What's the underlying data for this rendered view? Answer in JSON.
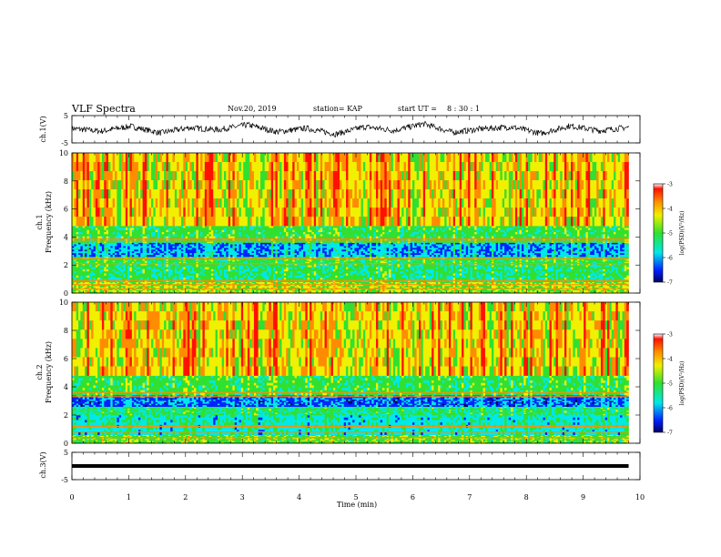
{
  "header": {
    "title": "VLF Spectra",
    "date": "Nov.20, 2019",
    "station": "station= KAP",
    "start_label": "start  UT =",
    "start_time": "8  : 30 : 1"
  },
  "chart_data": [
    {
      "type": "line",
      "panel": "ch1-waveform",
      "ylabel": "ch.1(V)",
      "ylim": [
        -5,
        5
      ],
      "yticks": [
        "5",
        "-5"
      ],
      "xlim": [
        0,
        10
      ],
      "data_end_min": 9.8,
      "series": [
        {
          "values": [
            0.3,
            -0.8,
            1.2,
            -1.5,
            0.6,
            -0.2,
            1.8,
            -1.1,
            0.4,
            -2.0,
            1.0,
            -0.5,
            2.2,
            -1.3,
            0.2,
            0.9,
            -1.7,
            1.4,
            -0.6,
            0.8
          ]
        }
      ]
    },
    {
      "type": "heatmap",
      "panel": "ch1-spectrogram",
      "ylabel": "Frequency (kHz)",
      "channel_label": "ch.1",
      "ylim": [
        0,
        10
      ],
      "yticks": [
        "0",
        "2",
        "4",
        "6",
        "8",
        "10"
      ],
      "xlim": [
        0,
        10
      ],
      "data_end_min": 9.8,
      "colorbar": {
        "label": "log(PSD)(V²/Hz)",
        "ticks": [
          "-3",
          "-4",
          "-5",
          "-6",
          "-7"
        ],
        "range": [
          -7,
          -3
        ]
      },
      "bands": [
        {
          "from_khz": 0,
          "to_khz": 0.8,
          "level": -4.6
        },
        {
          "from_khz": 0.8,
          "to_khz": 2.0,
          "level": -5.2
        },
        {
          "from_khz": 2.0,
          "to_khz": 2.6,
          "level": -5.0
        },
        {
          "from_khz": 2.6,
          "to_khz": 3.6,
          "level": -5.9
        },
        {
          "from_khz": 3.6,
          "to_khz": 4.8,
          "level": -5.0
        },
        {
          "from_khz": 4.8,
          "to_khz": 10,
          "level": -4.2
        }
      ],
      "lines_khz": [
        0.3,
        0.6,
        0.9,
        2.1,
        2.45,
        3.7,
        3.85
      ]
    },
    {
      "type": "heatmap",
      "panel": "ch2-spectrogram",
      "ylabel": "Frequency (kHz)",
      "channel_label": "ch.2",
      "ylim": [
        0,
        10
      ],
      "yticks": [
        "0",
        "2",
        "4",
        "6",
        "8",
        "10"
      ],
      "xlim": [
        0,
        10
      ],
      "data_end_min": 9.8,
      "colorbar": {
        "label": "log(PSD)(V²/Hz)",
        "ticks": [
          "-3",
          "-4",
          "-5",
          "-6",
          "-7"
        ],
        "range": [
          -7,
          -3
        ]
      },
      "bands": [
        {
          "from_khz": 0,
          "to_khz": 0.6,
          "level": -4.8
        },
        {
          "from_khz": 0.6,
          "to_khz": 2.0,
          "level": -5.5
        },
        {
          "from_khz": 2.0,
          "to_khz": 2.6,
          "level": -5.2
        },
        {
          "from_khz": 2.6,
          "to_khz": 3.4,
          "level": -6.1
        },
        {
          "from_khz": 3.4,
          "to_khz": 4.8,
          "level": -5.0
        },
        {
          "from_khz": 4.8,
          "to_khz": 10,
          "level": -4.2
        }
      ],
      "lines_khz": [
        0.4,
        0.8,
        1.2,
        3.3,
        3.6
      ]
    },
    {
      "type": "line",
      "panel": "ch3-waveform",
      "ylabel": "ch.3(V)",
      "ylim": [
        -5,
        5
      ],
      "yticks": [
        "5",
        "-5"
      ],
      "xlim": [
        0,
        10
      ],
      "data_end_min": 9.8,
      "series": [
        {
          "values": [
            0,
            0
          ]
        }
      ]
    }
  ],
  "xaxis": {
    "label": "Time (min)",
    "ticks": [
      "0",
      "1",
      "2",
      "3",
      "4",
      "5",
      "6",
      "7",
      "8",
      "9",
      "10"
    ]
  },
  "colors": {
    "red": "#ff1000",
    "orange": "#ff8c00",
    "yellow": "#f0f000",
    "green": "#30e030",
    "cyan": "#00e8e8",
    "blue": "#0020ff",
    "navy": "#000060"
  }
}
